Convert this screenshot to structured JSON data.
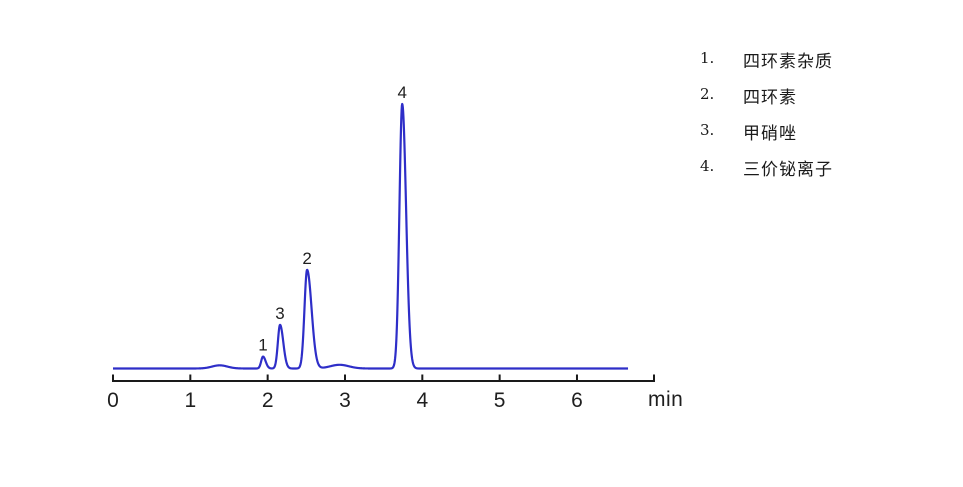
{
  "figure": {
    "background": "#ffffff"
  },
  "chart_data": {
    "type": "line",
    "title": "",
    "xlabel": "min",
    "ylabel": "",
    "x_axis": {
      "min": 0,
      "max": 7.0,
      "ticks": [
        0,
        1,
        2,
        3,
        4,
        5,
        6
      ]
    },
    "grid": "off",
    "legend_position": "right",
    "trace_color": "#2e2ec8",
    "axis_color": "#1a1a1a",
    "label_color": "#1f1f1f",
    "trace_start_min": 0,
    "trace_end_min": 6.66,
    "baseline_bumps": [
      {
        "rt": 1.38,
        "height": 0.012,
        "sigma_l": 0.1,
        "sigma_r": 0.1
      },
      {
        "rt": 2.93,
        "height": 0.014,
        "sigma_l": 0.12,
        "sigma_r": 0.12
      }
    ],
    "peaks": [
      {
        "label": "1",
        "rt": 1.94,
        "height": 0.045,
        "sigma_l": 0.024,
        "sigma_r": 0.034,
        "compound": "四环素杂质"
      },
      {
        "label": "3",
        "rt": 2.16,
        "height": 0.165,
        "sigma_l": 0.028,
        "sigma_r": 0.042,
        "compound": "甲硝唑"
      },
      {
        "label": "2",
        "rt": 2.51,
        "height": 0.373,
        "sigma_l": 0.034,
        "sigma_r": 0.058,
        "compound": "四环素"
      },
      {
        "label": "4",
        "rt": 3.74,
        "height": 1.0,
        "sigma_l": 0.036,
        "sigma_r": 0.05,
        "compound": "三价铋离子"
      }
    ]
  },
  "legend": {
    "items": [
      {
        "number": "1.",
        "name": "四环素杂质"
      },
      {
        "number": "2.",
        "name": "四环素"
      },
      {
        "number": "3.",
        "name": "甲硝唑"
      },
      {
        "number": "4.",
        "name": "三价铋离子"
      }
    ]
  }
}
